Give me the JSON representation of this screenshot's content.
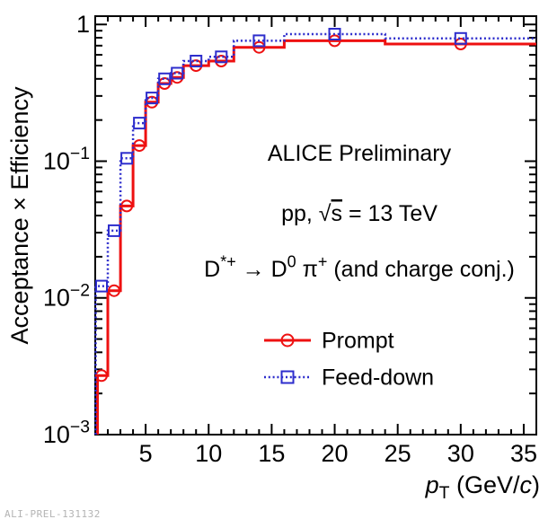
{
  "watermark": "ALI-PREL-131132",
  "chart_data": {
    "type": "line",
    "subtype": "step-histogram",
    "title": "",
    "ylabel": "Acceptance × Efficiency",
    "xlabel_parts": [
      {
        "t": "p",
        "italic": true
      },
      {
        "t": "T",
        "sub": true
      },
      {
        "t": " (GeV/"
      },
      {
        "t": "c",
        "italic": true
      },
      {
        "t": ")"
      }
    ],
    "log_y": true,
    "xlim": [
      1,
      36
    ],
    "ylim": [
      0.001,
      1.15
    ],
    "grid": false,
    "x_major_ticks": [
      5,
      10,
      15,
      20,
      25,
      30,
      35
    ],
    "x_minor_step": 1,
    "y_tick_labels": [
      {
        "value": 1,
        "parts": [
          {
            "t": "1"
          }
        ]
      },
      {
        "value": 0.1,
        "parts": [
          {
            "t": "10"
          },
          {
            "t": "−1",
            "sup": true
          }
        ]
      },
      {
        "value": 0.01,
        "parts": [
          {
            "t": "10"
          },
          {
            "t": "−2",
            "sup": true
          }
        ]
      },
      {
        "value": 0.001,
        "parts": [
          {
            "t": "10"
          },
          {
            "t": "−3",
            "sup": true
          }
        ]
      }
    ],
    "bin_edges": [
      1,
      2,
      3,
      4,
      5,
      6,
      7,
      8,
      10,
      12,
      16,
      24,
      36
    ],
    "series": [
      {
        "name": "Prompt",
        "color": "#ee1111",
        "line": "solid",
        "marker": "circle",
        "values": [
          0.0027,
          0.0113,
          0.047,
          0.13,
          0.27,
          0.37,
          0.41,
          0.5,
          0.54,
          0.68,
          0.76,
          0.72
        ]
      },
      {
        "name": "Feed-down",
        "color": "#2d2dcc",
        "line": "dotted",
        "marker": "square",
        "values": [
          0.0122,
          0.031,
          0.105,
          0.19,
          0.29,
          0.4,
          0.44,
          0.54,
          0.58,
          0.76,
          0.85,
          0.79
        ]
      }
    ],
    "annotations": [
      {
        "id": "alice",
        "parts": [
          {
            "t": "ALICE Preliminary"
          }
        ]
      },
      {
        "id": "energy",
        "parts": [
          {
            "t": "pp, "
          },
          {
            "t": "√"
          },
          {
            "t": "s",
            "overline": true
          },
          {
            "t": " = 13 TeV"
          }
        ]
      },
      {
        "id": "decay",
        "parts": [
          {
            "t": "D"
          },
          {
            "t": "*+",
            "sup": true
          },
          {
            "t": " → D"
          },
          {
            "t": "0",
            "sup": true
          },
          {
            "t": " π"
          },
          {
            "t": "+",
            "sup": true
          },
          {
            "t": " (and charge conj.)"
          }
        ]
      }
    ],
    "legend": [
      {
        "label": "Prompt",
        "series": 0
      },
      {
        "label": "Feed-down",
        "series": 1
      }
    ],
    "legend_position": "bottom-right-inside",
    "frame_color": "#000000"
  }
}
